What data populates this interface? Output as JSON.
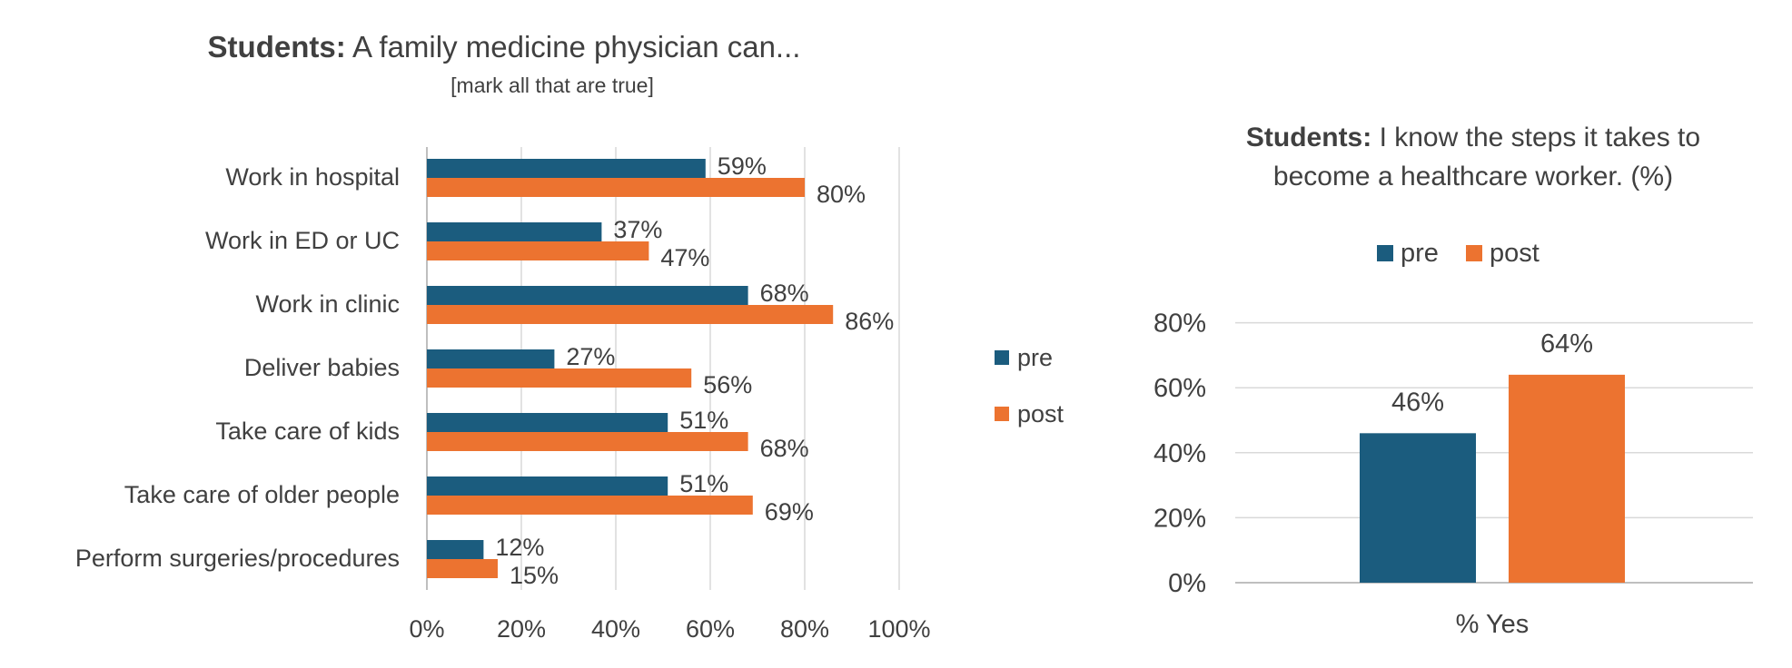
{
  "colors": {
    "pre": "#1b5c7e",
    "post": "#ec7330",
    "grid": "#d9d9d9",
    "axis": "#bfbfbf",
    "text": "#404040"
  },
  "chart_data": [
    {
      "type": "bar",
      "orientation": "horizontal",
      "title_bold": "Students:",
      "title_rest": " A family medicine physician can...",
      "subtitle": "[mark all that are true]",
      "categories": [
        "Work in hospital",
        "Work in ED or UC",
        "Work in clinic",
        "Deliver babies",
        "Take care of kids",
        "Take care of older people",
        "Perform surgeries/procedures"
      ],
      "series": [
        {
          "name": "pre",
          "values": [
            59,
            37,
            68,
            27,
            51,
            51,
            12
          ],
          "labels": [
            "59%",
            "37%",
            "68%",
            "27%",
            "51%",
            "51%",
            "12%"
          ]
        },
        {
          "name": "post",
          "values": [
            80,
            47,
            86,
            56,
            68,
            69,
            15
          ],
          "labels": [
            "80%",
            "47%",
            "86%",
            "56%",
            "68%",
            "69%",
            "15%"
          ]
        }
      ],
      "xlim": [
        0,
        100
      ],
      "xticks": [
        "0%",
        "20%",
        "40%",
        "60%",
        "80%",
        "100%"
      ],
      "grid": true,
      "legend": "right"
    },
    {
      "type": "bar",
      "title_bold": "Students:",
      "title_rest": " I know the steps it takes to",
      "title_line2": "become a healthcare worker. (%)",
      "categories": [
        "% Yes"
      ],
      "series": [
        {
          "name": "pre",
          "values": [
            46
          ],
          "labels": [
            "46%"
          ]
        },
        {
          "name": "post",
          "values": [
            64
          ],
          "labels": [
            "64%"
          ]
        }
      ],
      "ylim": [
        0,
        80
      ],
      "yticks": [
        "0%",
        "20%",
        "40%",
        "60%",
        "80%"
      ],
      "grid": true,
      "legend": "top"
    }
  ]
}
